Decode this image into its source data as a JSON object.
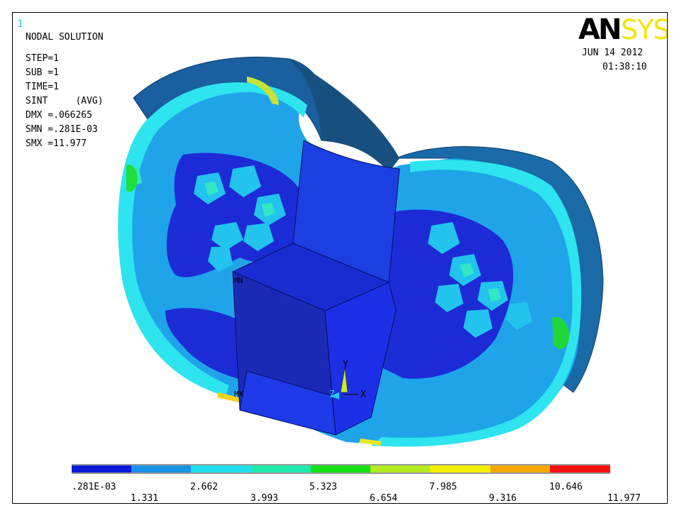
{
  "window": {
    "number": "1"
  },
  "info": {
    "title": "NODAL SOLUTION",
    "step": "STEP=1",
    "sub": "SUB =1",
    "time": "TIME=1",
    "item": "SINT     (AVG)",
    "dmx": "DMX =.066265",
    "smn": "SMN =.281E-03",
    "smx": "SMX =11.977"
  },
  "logo": {
    "part1": "AN",
    "part2": "SYS"
  },
  "header": {
    "date": "JUN 14 2012",
    "clock": "01:38:10"
  },
  "axes": {
    "x": "X",
    "y": "Y",
    "z": "Z"
  },
  "markers": {
    "min": "MN",
    "max": "MX"
  },
  "legend": {
    "colors": [
      "#0b1ad8",
      "#1a94e6",
      "#20e0ee",
      "#20eaae",
      "#16e016",
      "#b4ec24",
      "#f4f000",
      "#f4a800",
      "#f41010"
    ],
    "labels": [
      ".281E-03",
      "1.331",
      "2.662",
      "3.993",
      "5.323",
      "6.654",
      "7.985",
      "9.316",
      "10.646",
      "11.977"
    ]
  }
}
